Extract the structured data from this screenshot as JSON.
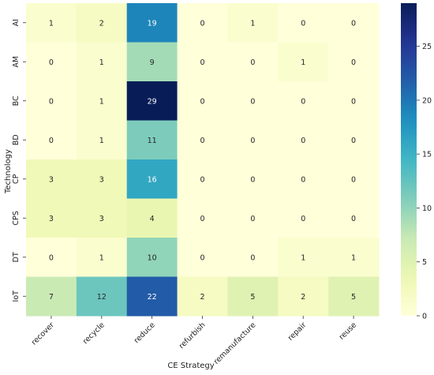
{
  "chart_data": {
    "type": "heatmap",
    "title": "",
    "xlabel": "CE Strategy",
    "ylabel": "Technology",
    "x_categories": [
      "recover",
      "recycle",
      "reduce",
      "refurbish",
      "remanufacture",
      "repair",
      "reuse"
    ],
    "y_categories": [
      "AI",
      "AM",
      "BC",
      "BD",
      "CP",
      "CPS",
      "DT",
      "IoT"
    ],
    "values": [
      [
        1,
        2,
        19,
        0,
        1,
        0,
        0
      ],
      [
        0,
        1,
        9,
        0,
        0,
        1,
        0
      ],
      [
        0,
        1,
        29,
        0,
        0,
        0,
        0
      ],
      [
        0,
        1,
        11,
        0,
        0,
        0,
        0
      ],
      [
        3,
        3,
        16,
        0,
        0,
        0,
        0
      ],
      [
        3,
        3,
        4,
        0,
        0,
        0,
        0
      ],
      [
        0,
        1,
        10,
        0,
        0,
        1,
        1
      ],
      [
        7,
        12,
        22,
        2,
        5,
        2,
        5
      ]
    ],
    "colormap": "YlGnBu",
    "vmin": 0,
    "vmax": 29,
    "colorbar_ticks": [
      0,
      5,
      10,
      15,
      20,
      25
    ],
    "annotated": true
  }
}
